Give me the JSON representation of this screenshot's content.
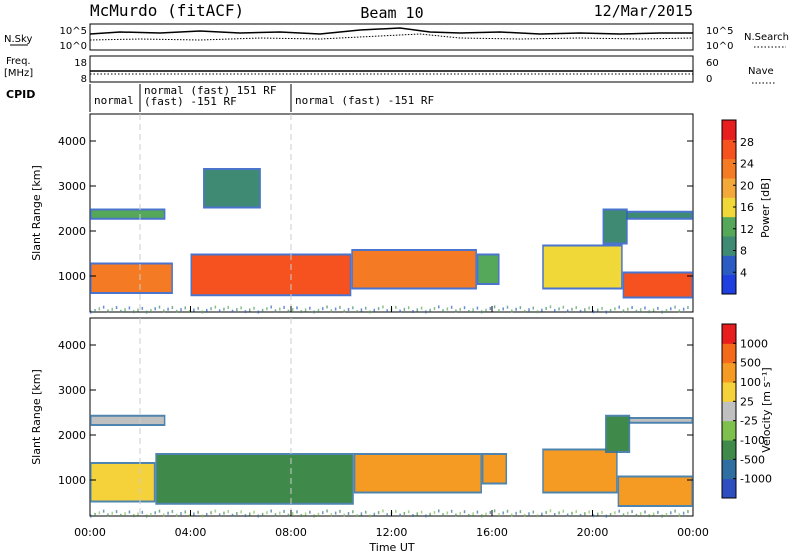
{
  "header": {
    "station": "McMurdo (fitACF)",
    "beam": "Beam 10",
    "date": "12/Mar/2015"
  },
  "summary_panels": {
    "nsky": {
      "label": "N.Sky",
      "ticks": [
        "10^5",
        "10^0"
      ]
    },
    "nsearch": {
      "label": "N.Search",
      "ticks": [
        "10^5",
        "10^0"
      ]
    },
    "freq": {
      "label_line1": "Freq.",
      "label_line2": "[MHz]",
      "ticks": [
        "18",
        "8"
      ]
    },
    "nave": {
      "label": "Nave",
      "ticks": [
        "60",
        "0"
      ]
    },
    "cpid": {
      "label": "CPID",
      "segments": [
        {
          "start_hour": 0.0,
          "end_hour": 2.0,
          "text": "normal"
        },
        {
          "start_hour": 2.0,
          "end_hour": 8.0,
          "text_line1": "normal (fast) 151 RF",
          "text_line2": "(fast) -151 RF"
        },
        {
          "start_hour": 8.0,
          "end_hour": 24.0,
          "text": "normal (fast) -151 RF"
        }
      ]
    }
  },
  "chart_data": [
    {
      "type": "heatmap",
      "name": "Power",
      "ylabel": "Slant Range [km]",
      "yticks": [
        "1000",
        "2000",
        "3000",
        "4000"
      ],
      "ylim": [
        200,
        4600
      ],
      "xlim": [
        0,
        24
      ],
      "colorbar": {
        "label": "Power [dB]",
        "ticks": [
          "4",
          "8",
          "12",
          "16",
          "20",
          "24",
          "28"
        ],
        "colors": [
          "#1f3fe0",
          "#2a5cc4",
          "#3f8a72",
          "#55a75a",
          "#f0d838",
          "#f3a83a",
          "#f57a24",
          "#f55220",
          "#e81e1e"
        ]
      },
      "bands": [
        {
          "start_hour": 0.0,
          "end_hour": 3.3,
          "low_km": 600,
          "high_km": 1300,
          "level": 0.78
        },
        {
          "start_hour": 4.0,
          "end_hour": 10.4,
          "low_km": 550,
          "high_km": 1500,
          "level": 0.92
        },
        {
          "start_hour": 10.4,
          "end_hour": 15.4,
          "low_km": 700,
          "high_km": 1600,
          "level": 0.7
        },
        {
          "start_hour": 15.4,
          "end_hour": 16.3,
          "low_km": 800,
          "high_km": 1500,
          "level": 0.4
        },
        {
          "start_hour": 18.0,
          "end_hour": 21.2,
          "low_km": 700,
          "high_km": 1700,
          "level": 0.45
        },
        {
          "start_hour": 21.2,
          "end_hour": 24.0,
          "low_km": 500,
          "high_km": 1100,
          "level": 0.82
        },
        {
          "start_hour": 0.0,
          "end_hour": 3.0,
          "low_km": 2250,
          "high_km": 2500,
          "level": 0.35
        },
        {
          "start_hour": 21.0,
          "end_hour": 24.0,
          "low_km": 2250,
          "high_km": 2450,
          "level": 0.3
        },
        {
          "start_hour": 20.4,
          "end_hour": 21.4,
          "low_km": 1700,
          "high_km": 2500,
          "level": 0.3
        },
        {
          "start_hour": 4.5,
          "end_hour": 6.8,
          "low_km": 2500,
          "high_km": 3400,
          "level": 0.25
        }
      ]
    },
    {
      "type": "heatmap",
      "name": "Velocity",
      "ylabel": "Slant Range [km]",
      "yticks": [
        "1000",
        "2000",
        "3000",
        "4000"
      ],
      "ylim": [
        200,
        4600
      ],
      "xlim": [
        0,
        24
      ],
      "xticks": [
        "00:00",
        "04:00",
        "08:00",
        "12:00",
        "16:00",
        "20:00",
        "00:00"
      ],
      "xlabel": "Time UT",
      "colorbar": {
        "label": "Velocity [m s⁻¹]",
        "ticks": [
          "1000",
          "500",
          "100",
          "25",
          "-25",
          "-100",
          "-500",
          "-1000"
        ],
        "colors": [
          "#2f4fc0",
          "#2f6ea0",
          "#3f8a4a",
          "#7ec04e",
          "#c0c0c0",
          "#f5d23a",
          "#f59a22",
          "#f56a1a",
          "#e81e1e"
        ]
      },
      "bands": [
        {
          "start_hour": 0.0,
          "end_hour": 2.6,
          "low_km": 500,
          "high_km": 1400,
          "color_index": 5
        },
        {
          "start_hour": 2.6,
          "end_hour": 10.5,
          "low_km": 450,
          "high_km": 1600,
          "color_index": 2
        },
        {
          "start_hour": 10.5,
          "end_hour": 15.6,
          "low_km": 700,
          "high_km": 1600,
          "color_index": 6
        },
        {
          "start_hour": 15.6,
          "end_hour": 16.6,
          "low_km": 900,
          "high_km": 1600,
          "color_index": 6
        },
        {
          "start_hour": 18.0,
          "end_hour": 21.0,
          "low_km": 700,
          "high_km": 1700,
          "color_index": 6
        },
        {
          "start_hour": 21.0,
          "end_hour": 24.0,
          "low_km": 400,
          "high_km": 1100,
          "color_index": 6
        },
        {
          "start_hour": 0.0,
          "end_hour": 3.0,
          "low_km": 2200,
          "high_km": 2450,
          "color_index": 4
        },
        {
          "start_hour": 21.0,
          "end_hour": 24.0,
          "low_km": 2250,
          "high_km": 2400,
          "color_index": 4
        },
        {
          "start_hour": 20.5,
          "end_hour": 21.5,
          "low_km": 1600,
          "high_km": 2450,
          "color_index": 2
        }
      ]
    }
  ]
}
